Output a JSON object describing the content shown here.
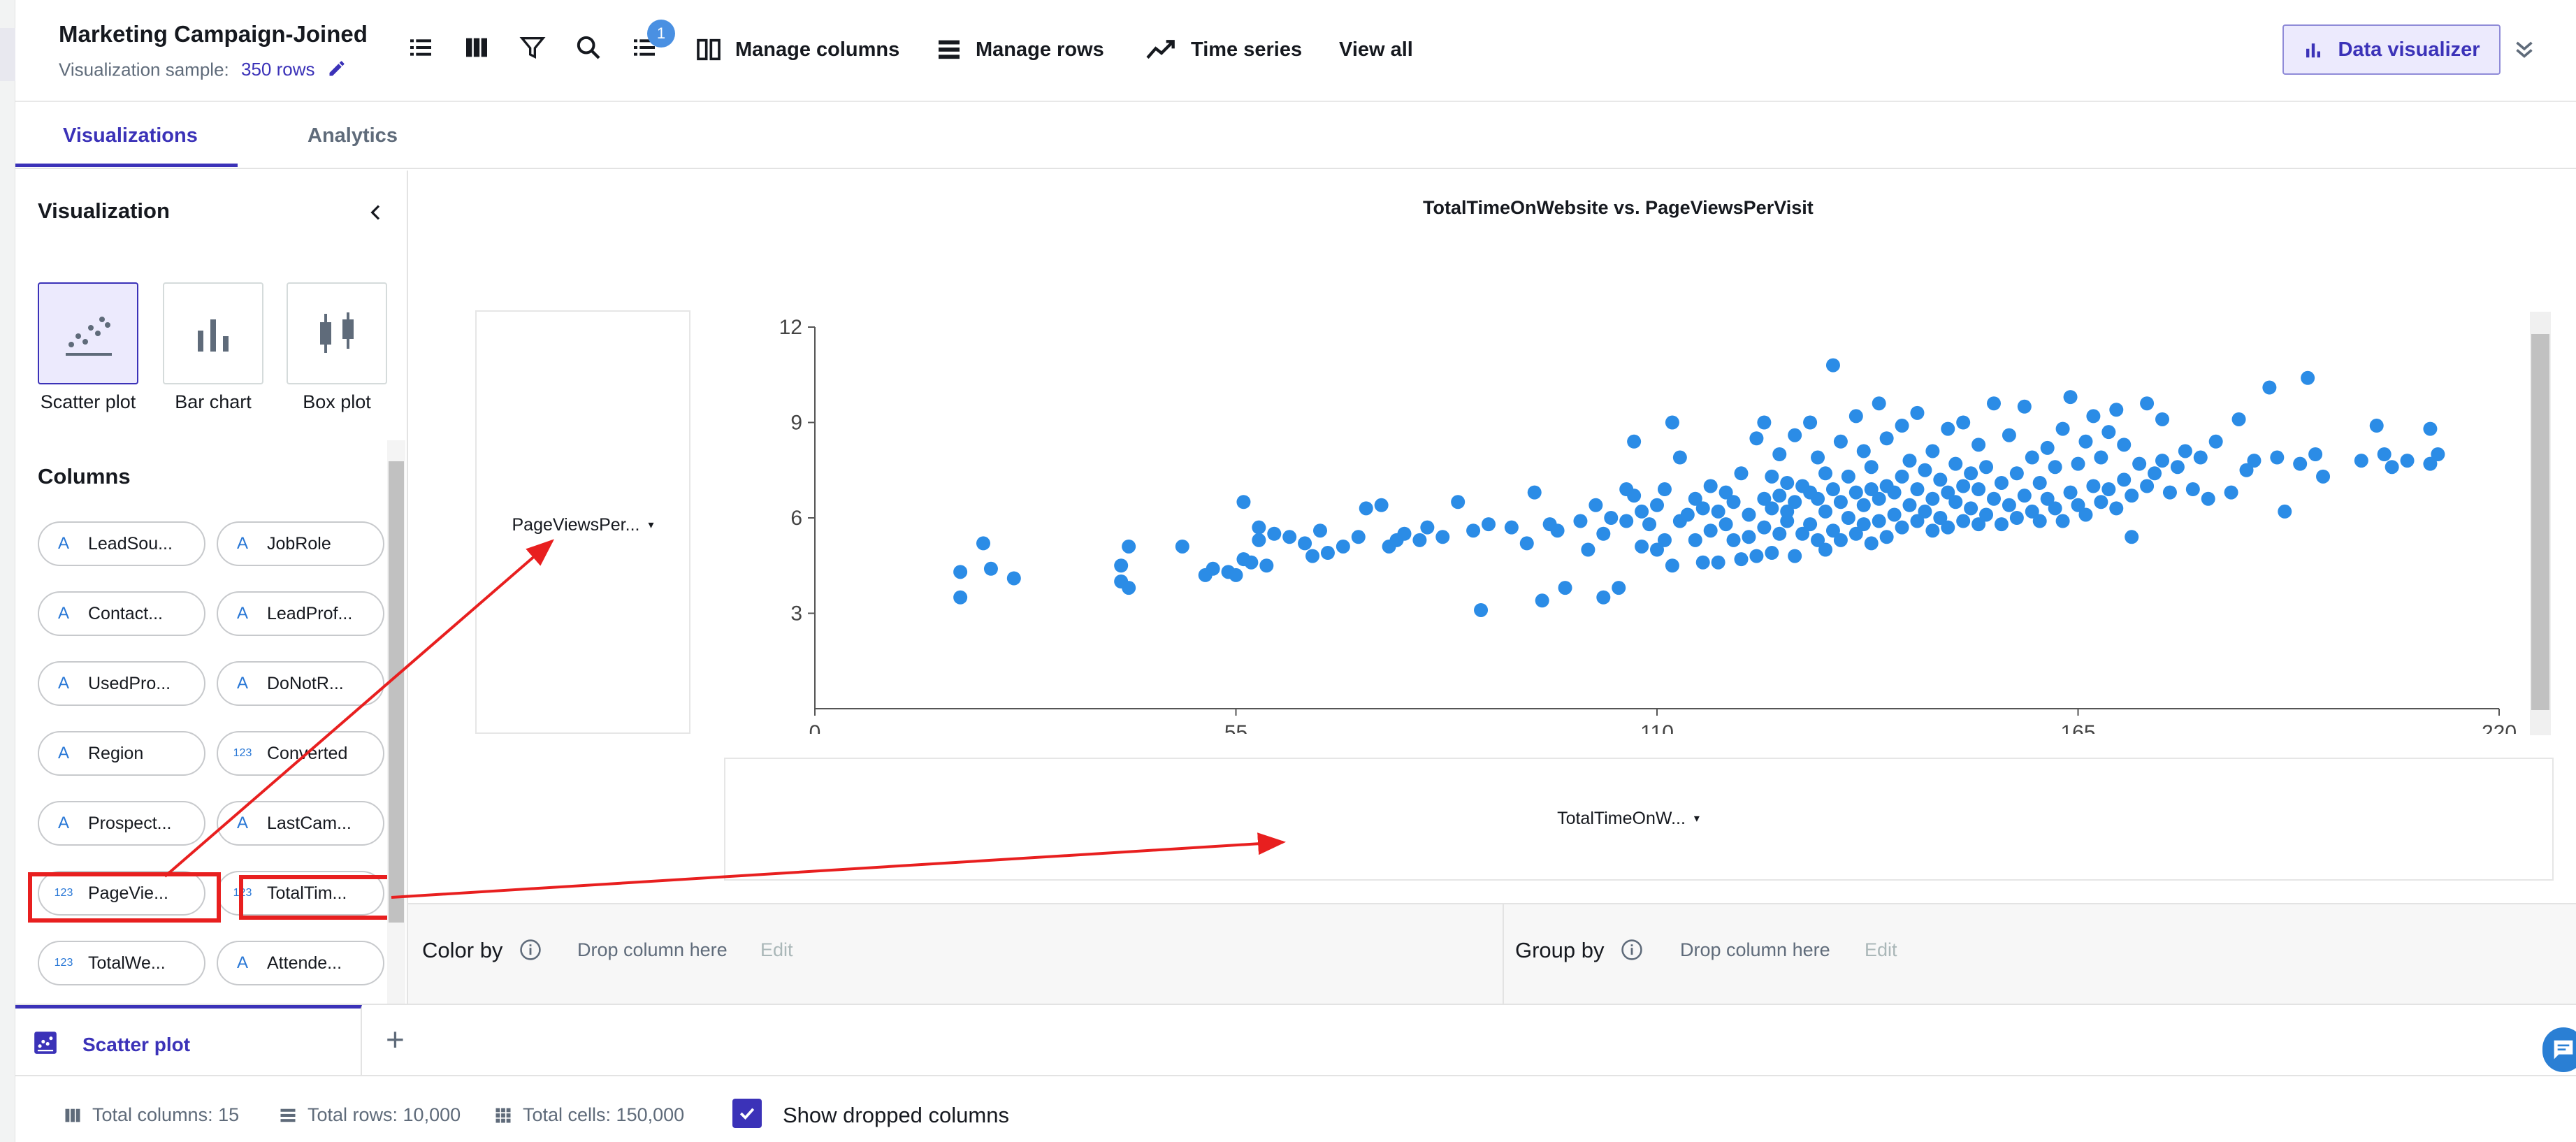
{
  "header": {
    "title": "Marketing Campaign-Joined",
    "sample_label": "Visualization sample:",
    "sample_rows": "350 rows",
    "manage_columns": "Manage columns",
    "manage_rows": "Manage rows",
    "time_series": "Time series",
    "view_all": "View all",
    "badge_count": "1",
    "data_visualizer": "Data visualizer"
  },
  "tabs": {
    "visualizations": "Visualizations",
    "analytics": "Analytics"
  },
  "panel": {
    "title": "Visualization",
    "viz_types": [
      "Scatter plot",
      "Bar chart",
      "Box plot"
    ],
    "columns_title": "Columns",
    "columns": [
      {
        "label": "LeadSou...",
        "type": "text"
      },
      {
        "label": "JobRole",
        "type": "text"
      },
      {
        "label": "Contact...",
        "type": "text"
      },
      {
        "label": "LeadProf...",
        "type": "text"
      },
      {
        "label": "UsedPro...",
        "type": "text"
      },
      {
        "label": "DoNotR...",
        "type": "text"
      },
      {
        "label": "Region",
        "type": "text"
      },
      {
        "label": "Converted",
        "type": "numeric"
      },
      {
        "label": "Prospect...",
        "type": "text"
      },
      {
        "label": "LastCam...",
        "type": "text"
      },
      {
        "label": "PageVie...",
        "type": "numeric"
      },
      {
        "label": "TotalTim...",
        "type": "numeric"
      },
      {
        "label": "TotalWe...",
        "type": "numeric"
      },
      {
        "label": "Attende...",
        "type": "text"
      }
    ],
    "text_type_icon": "A",
    "numeric_type_icon": "123"
  },
  "chart": {
    "y_field": "PageViewsPer...",
    "x_field": "TotalTimeOnW..."
  },
  "chart_data": {
    "type": "scatter",
    "title": "TotalTimeOnWebsite vs. PageViewsPerVisit",
    "xlabel": "",
    "ylabel": "",
    "xlim": [
      0,
      220
    ],
    "ylim": [
      0,
      12
    ],
    "x_ticks": [
      0,
      55,
      110,
      165,
      220
    ],
    "y_ticks": [
      3,
      6,
      9,
      12
    ],
    "color": "#2b8ce6",
    "points": [
      [
        19,
        3.5
      ],
      [
        19,
        4.3
      ],
      [
        22,
        5.2
      ],
      [
        23,
        4.4
      ],
      [
        26,
        4.1
      ],
      [
        40,
        4.5
      ],
      [
        40,
        4.0
      ],
      [
        41,
        3.8
      ],
      [
        41,
        5.1
      ],
      [
        48,
        5.1
      ],
      [
        51,
        4.2
      ],
      [
        52,
        4.4
      ],
      [
        54,
        4.3
      ],
      [
        55,
        4.2
      ],
      [
        56,
        4.7
      ],
      [
        56,
        6.5
      ],
      [
        57,
        4.6
      ],
      [
        58,
        5.7
      ],
      [
        58,
        5.3
      ],
      [
        59,
        4.5
      ],
      [
        60,
        5.5
      ],
      [
        62,
        5.4
      ],
      [
        64,
        5.2
      ],
      [
        65,
        4.8
      ],
      [
        66,
        5.6
      ],
      [
        67,
        4.9
      ],
      [
        69,
        5.1
      ],
      [
        71,
        5.4
      ],
      [
        72,
        6.3
      ],
      [
        74,
        6.4
      ],
      [
        75,
        5.1
      ],
      [
        76,
        5.3
      ],
      [
        77,
        5.5
      ],
      [
        79,
        5.3
      ],
      [
        80,
        5.7
      ],
      [
        82,
        5.4
      ],
      [
        84,
        6.5
      ],
      [
        86,
        5.6
      ],
      [
        87,
        3.1
      ],
      [
        88,
        5.8
      ],
      [
        91,
        5.7
      ],
      [
        93,
        5.2
      ],
      [
        94,
        6.8
      ],
      [
        95,
        3.4
      ],
      [
        96,
        5.8
      ],
      [
        97,
        5.6
      ],
      [
        98,
        3.8
      ],
      [
        100,
        5.9
      ],
      [
        101,
        5.0
      ],
      [
        102,
        6.4
      ],
      [
        103,
        3.5
      ],
      [
        103,
        5.5
      ],
      [
        104,
        6.0
      ],
      [
        105,
        3.8
      ],
      [
        106,
        5.9
      ],
      [
        106,
        6.9
      ],
      [
        107,
        6.7
      ],
      [
        107,
        8.4
      ],
      [
        108,
        5.1
      ],
      [
        108,
        6.2
      ],
      [
        109,
        5.8
      ],
      [
        110,
        6.4
      ],
      [
        110,
        5.0
      ],
      [
        111,
        5.3
      ],
      [
        111,
        6.9
      ],
      [
        112,
        4.5
      ],
      [
        112,
        9.0
      ],
      [
        113,
        5.9
      ],
      [
        113,
        7.9
      ],
      [
        114,
        6.1
      ],
      [
        115,
        5.3
      ],
      [
        115,
        6.6
      ],
      [
        116,
        4.6
      ],
      [
        116,
        6.3
      ],
      [
        117,
        5.6
      ],
      [
        117,
        7.0
      ],
      [
        118,
        4.6
      ],
      [
        118,
        6.2
      ],
      [
        119,
        5.8
      ],
      [
        119,
        6.8
      ],
      [
        120,
        5.3
      ],
      [
        120,
        6.5
      ],
      [
        121,
        4.7
      ],
      [
        121,
        7.4
      ],
      [
        122,
        5.4
      ],
      [
        122,
        6.1
      ],
      [
        123,
        4.8
      ],
      [
        123,
        8.5
      ],
      [
        124,
        5.7
      ],
      [
        124,
        6.6
      ],
      [
        124,
        9.0
      ],
      [
        125,
        4.9
      ],
      [
        125,
        6.3
      ],
      [
        125,
        7.3
      ],
      [
        126,
        5.5
      ],
      [
        126,
        6.7
      ],
      [
        126,
        8.0
      ],
      [
        127,
        5.9
      ],
      [
        127,
        6.2
      ],
      [
        127,
        7.1
      ],
      [
        128,
        4.8
      ],
      [
        128,
        6.5
      ],
      [
        128,
        8.6
      ],
      [
        129,
        5.5
      ],
      [
        129,
        7.0
      ],
      [
        130,
        5.8
      ],
      [
        130,
        6.8
      ],
      [
        130,
        9.0
      ],
      [
        131,
        5.3
      ],
      [
        131,
        6.6
      ],
      [
        131,
        7.9
      ],
      [
        132,
        5.0
      ],
      [
        132,
        6.2
      ],
      [
        132,
        7.4
      ],
      [
        133,
        5.6
      ],
      [
        133,
        6.9
      ],
      [
        133,
        10.8
      ],
      [
        134,
        5.3
      ],
      [
        134,
        6.5
      ],
      [
        134,
        8.4
      ],
      [
        135,
        6.0
      ],
      [
        135,
        7.3
      ],
      [
        136,
        5.5
      ],
      [
        136,
        6.8
      ],
      [
        136,
        9.2
      ],
      [
        137,
        5.8
      ],
      [
        137,
        6.4
      ],
      [
        137,
        8.1
      ],
      [
        138,
        5.2
      ],
      [
        138,
        6.9
      ],
      [
        138,
        7.6
      ],
      [
        139,
        5.9
      ],
      [
        139,
        6.6
      ],
      [
        139,
        9.6
      ],
      [
        140,
        5.4
      ],
      [
        140,
        7.0
      ],
      [
        140,
        8.5
      ],
      [
        141,
        6.1
      ],
      [
        141,
        6.8
      ],
      [
        142,
        5.7
      ],
      [
        142,
        7.3
      ],
      [
        142,
        8.9
      ],
      [
        143,
        6.4
      ],
      [
        143,
        7.8
      ],
      [
        144,
        5.9
      ],
      [
        144,
        6.9
      ],
      [
        144,
        9.3
      ],
      [
        145,
        6.2
      ],
      [
        145,
        7.5
      ],
      [
        146,
        5.6
      ],
      [
        146,
        6.6
      ],
      [
        146,
        8.1
      ],
      [
        147,
        6.0
      ],
      [
        147,
        7.2
      ],
      [
        148,
        5.7
      ],
      [
        148,
        6.8
      ],
      [
        148,
        8.8
      ],
      [
        149,
        6.5
      ],
      [
        149,
        7.7
      ],
      [
        150,
        5.9
      ],
      [
        150,
        7.0
      ],
      [
        150,
        9.0
      ],
      [
        151,
        6.3
      ],
      [
        151,
        7.4
      ],
      [
        152,
        5.8
      ],
      [
        152,
        6.9
      ],
      [
        152,
        8.3
      ],
      [
        153,
        6.1
      ],
      [
        153,
        7.6
      ],
      [
        154,
        6.6
      ],
      [
        154,
        9.6
      ],
      [
        155,
        5.8
      ],
      [
        155,
        7.1
      ],
      [
        156,
        6.4
      ],
      [
        156,
        8.6
      ],
      [
        157,
        6.0
      ],
      [
        157,
        7.4
      ],
      [
        158,
        6.7
      ],
      [
        158,
        9.5
      ],
      [
        159,
        6.2
      ],
      [
        159,
        7.9
      ],
      [
        160,
        5.9
      ],
      [
        160,
        7.1
      ],
      [
        161,
        6.6
      ],
      [
        161,
        8.2
      ],
      [
        162,
        6.3
      ],
      [
        162,
        7.6
      ],
      [
        163,
        5.9
      ],
      [
        163,
        8.8
      ],
      [
        164,
        6.8
      ],
      [
        164,
        9.8
      ],
      [
        165,
        6.4
      ],
      [
        165,
        7.7
      ],
      [
        166,
        6.1
      ],
      [
        166,
        8.4
      ],
      [
        167,
        7.0
      ],
      [
        167,
        9.2
      ],
      [
        168,
        6.5
      ],
      [
        168,
        7.9
      ],
      [
        169,
        6.9
      ],
      [
        169,
        8.7
      ],
      [
        170,
        6.3
      ],
      [
        170,
        9.4
      ],
      [
        171,
        7.2
      ],
      [
        171,
        8.3
      ],
      [
        172,
        6.7
      ],
      [
        172,
        5.4
      ],
      [
        173,
        7.7
      ],
      [
        174,
        7.0
      ],
      [
        174,
        9.6
      ],
      [
        175,
        7.4
      ],
      [
        176,
        7.8
      ],
      [
        176,
        9.1
      ],
      [
        177,
        6.8
      ],
      [
        178,
        7.6
      ],
      [
        179,
        8.1
      ],
      [
        180,
        6.9
      ],
      [
        181,
        7.9
      ],
      [
        182,
        6.6
      ],
      [
        183,
        8.4
      ],
      [
        185,
        6.8
      ],
      [
        186,
        9.1
      ],
      [
        187,
        7.5
      ],
      [
        188,
        7.8
      ],
      [
        190,
        10.1
      ],
      [
        191,
        7.9
      ],
      [
        192,
        6.2
      ],
      [
        194,
        7.7
      ],
      [
        195,
        10.4
      ],
      [
        196,
        8.0
      ],
      [
        197,
        7.3
      ],
      [
        202,
        7.8
      ],
      [
        204,
        8.9
      ],
      [
        205,
        8.0
      ],
      [
        206,
        7.6
      ],
      [
        208,
        7.8
      ],
      [
        211,
        7.7
      ],
      [
        211,
        8.8
      ],
      [
        212,
        8.0
      ]
    ]
  },
  "encodings": {
    "color_by": "Color by",
    "group_by": "Group by",
    "drop_hint": "Drop column here",
    "edit": "Edit"
  },
  "bottom": {
    "tab_label": "Scatter plot",
    "add_tab": "+"
  },
  "footer": {
    "total_columns": "Total columns: 15",
    "total_rows": "Total rows: 10,000",
    "total_cells": "Total cells: 150,000",
    "show_dropped": "Show dropped columns"
  },
  "colors": {
    "accent": "#3b32b8",
    "point": "#2b8ce6",
    "annotation": "#e81f1f"
  }
}
